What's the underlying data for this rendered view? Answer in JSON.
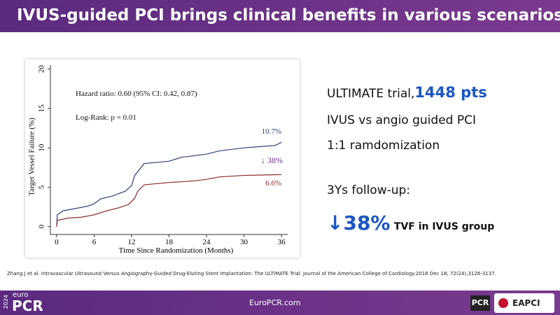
{
  "header": {
    "title": "IVUS-guided PCI brings clinical benefits in various scenarios"
  },
  "chart_data": {
    "type": "line",
    "xlabel": "Time Since Randomization (Months)",
    "ylabel": "Target Vessel Failure (%)",
    "annotations": [
      "Hazard ratio: 0.60 (95% CI: 0.42, 0.87)",
      "Log-Rank: p = 0.01",
      "10.7%",
      "↓ 38%",
      "6.6%"
    ],
    "xlim": [
      -1,
      37
    ],
    "ylim": [
      -1,
      20.5
    ],
    "xticks": [
      0,
      6,
      12,
      18,
      24,
      30,
      36
    ],
    "yticks": [
      0,
      5,
      10,
      15,
      20
    ],
    "series": [
      {
        "color": "#2e3f7a",
        "x": [
          0,
          0.1,
          1,
          3,
          5,
          6,
          7,
          9,
          11,
          12,
          12.5,
          13.5,
          14,
          18,
          20,
          24,
          26,
          30,
          35,
          36
        ],
        "values": [
          0,
          1.5,
          2.0,
          2.3,
          2.6,
          2.9,
          3.5,
          3.9,
          4.5,
          5.2,
          6.5,
          7.5,
          8.0,
          8.3,
          8.8,
          9.2,
          9.6,
          10.0,
          10.3,
          10.7
        ]
      },
      {
        "color": "#8b2a2a",
        "x": [
          0,
          0.1,
          2,
          4,
          6,
          8,
          10,
          11.5,
          12.5,
          13,
          14,
          18,
          22,
          24,
          26,
          30,
          36
        ],
        "values": [
          0,
          0.8,
          1.1,
          1.2,
          1.5,
          2.0,
          2.4,
          2.8,
          3.6,
          4.5,
          5.3,
          5.6,
          5.8,
          6.0,
          6.3,
          6.5,
          6.6
        ]
      }
    ]
  },
  "points": {
    "trial": "ULTIMATE trial,",
    "pts": "1448 pts",
    "line2": "IVUS vs angio guided PCI",
    "line3": "1:1 ramdomization",
    "line4": "3Ys follow-up:",
    "reduction": "↓38%",
    "reduction_text": "TVF in IVUS group"
  },
  "reference": "Zhang J et al. Intravascular Ultrasound Versus Angiography-Guided Drug-Eluting Stent Implantation: The ULTIMATE Trial. Journal of the American College of Cardiology.2018  Dec 18; 72(24),3126-3137.",
  "footer": {
    "year": "2024",
    "euro": "euro",
    "pcr": "PCR",
    "site": "EuroPCR.com",
    "badge": "PCR",
    "eapci": "EAPCI"
  }
}
